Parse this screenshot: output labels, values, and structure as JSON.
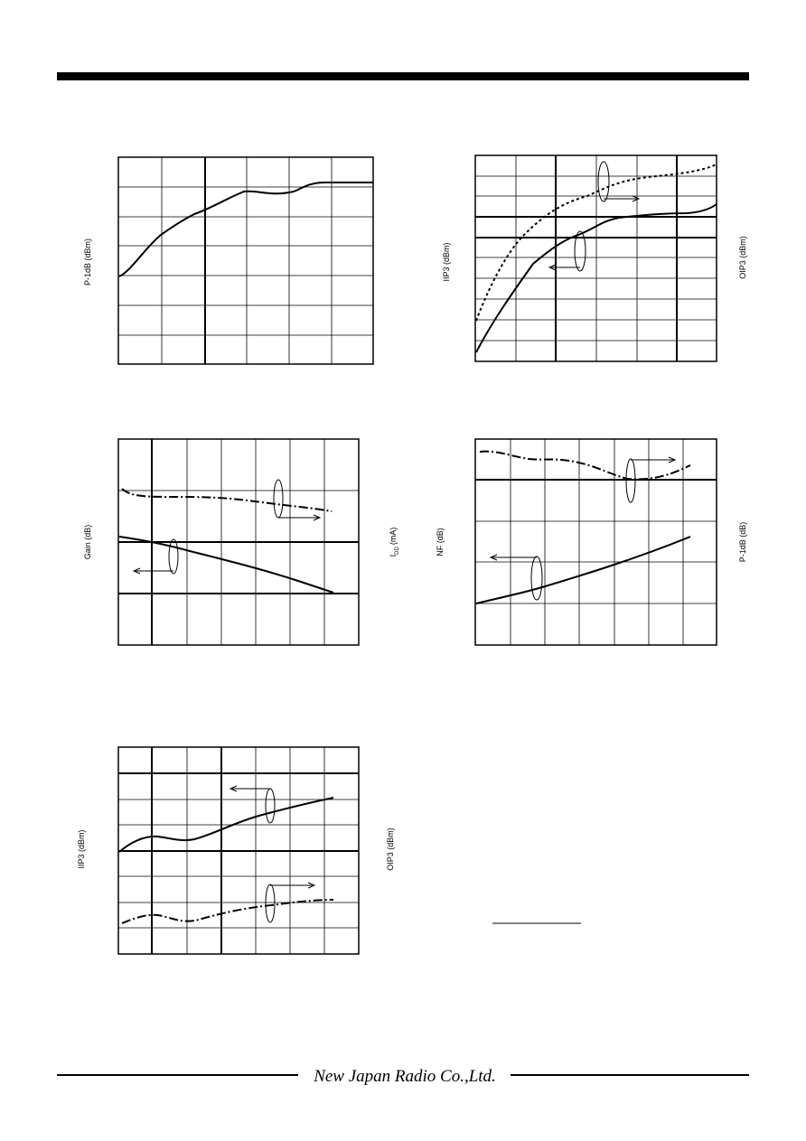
{
  "panels": [
    {
      "left_label": "P-1dB (dBm)"
    },
    {
      "left_label": "IIP3 (dBm)",
      "right_label": "OIP3 (dBm)"
    },
    {
      "left_label": "Gain (dB)",
      "right_label": "I",
      "right_label_sub": "DD",
      "right_label_unit": "(mA)"
    },
    {
      "left_label": "NF (dB)",
      "right_label": "P-1dB (dB)"
    },
    {
      "left_label": "IIP3 (dBm)",
      "right_label": "OIP3 (dBm)"
    }
  ],
  "footer": {
    "logo": "New Japan Radio Co.,Ltd."
  }
}
